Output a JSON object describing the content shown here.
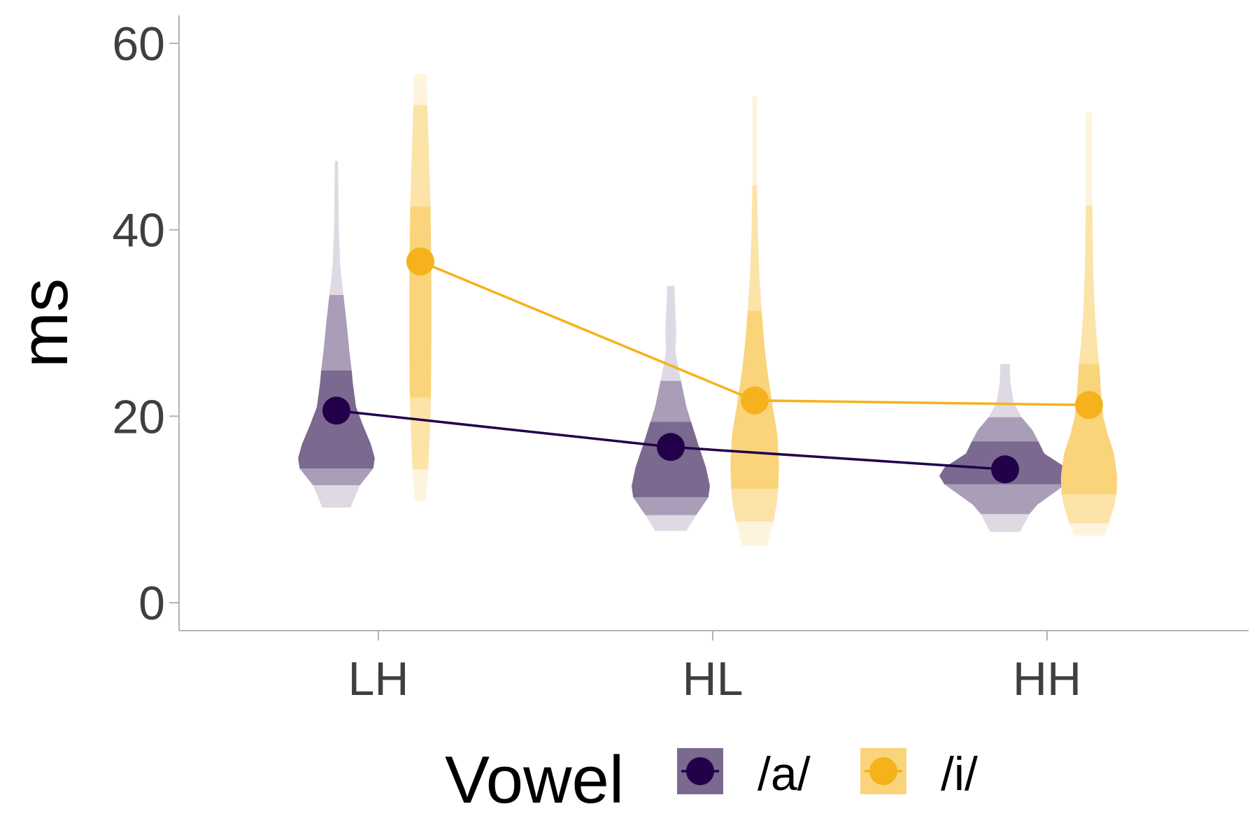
{
  "chart_data": {
    "type": "violin",
    "ylabel": "ms",
    "xlabel": "",
    "ylim": [
      -3,
      63
    ],
    "yticks": [
      0,
      20,
      40,
      60
    ],
    "categories": [
      "LH",
      "HL",
      "HH"
    ],
    "grid": false,
    "legend": {
      "title": "Vowel",
      "position": "bottom"
    },
    "series": [
      {
        "name": "/a/",
        "color": "#22004a",
        "fill": "#7b6990",
        "means": [
          20.6,
          16.7,
          14.3
        ],
        "violins": [
          {
            "min": 10.2,
            "max": 47.4,
            "bands": [
              10.2,
              12.6,
              14.4,
              24.9,
              33.0,
              47.4
            ],
            "profile": [
              [
                10.2,
                0.36
              ],
              [
                12.6,
                0.6
              ],
              [
                14.4,
                0.94
              ],
              [
                15.5,
                0.98
              ],
              [
                17.0,
                0.88
              ],
              [
                19.0,
                0.68
              ],
              [
                21.0,
                0.5
              ],
              [
                23.5,
                0.42
              ],
              [
                24.9,
                0.39
              ],
              [
                27.0,
                0.33
              ],
              [
                30.0,
                0.26
              ],
              [
                33.0,
                0.18
              ],
              [
                36.0,
                0.1
              ],
              [
                40.0,
                0.06
              ],
              [
                44.0,
                0.05
              ],
              [
                47.4,
                0.04
              ]
            ]
          },
          {
            "min": 7.7,
            "max": 34.0,
            "bands": [
              7.7,
              9.4,
              11.3,
              19.4,
              23.8,
              34.0
            ],
            "profile": [
              [
                7.7,
                0.4
              ],
              [
                9.4,
                0.65
              ],
              [
                11.3,
                0.96
              ],
              [
                12.5,
                1.0
              ],
              [
                14.5,
                0.9
              ],
              [
                17.0,
                0.7
              ],
              [
                19.4,
                0.52
              ],
              [
                21.0,
                0.4
              ],
              [
                23.0,
                0.3
              ],
              [
                23.8,
                0.26
              ],
              [
                25.5,
                0.18
              ],
              [
                27.0,
                0.12
              ],
              [
                29.0,
                0.14
              ],
              [
                31.0,
                0.12
              ],
              [
                33.0,
                0.1
              ],
              [
                34.0,
                0.09
              ]
            ]
          },
          {
            "min": 7.6,
            "max": 25.6,
            "bands": [
              7.6,
              9.5,
              12.7,
              17.3,
              19.9,
              25.6
            ],
            "profile": [
              [
                7.6,
                0.38
              ],
              [
                9.5,
                0.62
              ],
              [
                10.5,
                0.82
              ],
              [
                11.5,
                1.15
              ],
              [
                12.7,
                1.55
              ],
              [
                13.6,
                1.68
              ],
              [
                14.5,
                1.55
              ],
              [
                16.0,
                1.0
              ],
              [
                17.3,
                0.85
              ],
              [
                18.5,
                0.7
              ],
              [
                19.9,
                0.42
              ],
              [
                21.5,
                0.22
              ],
              [
                23.5,
                0.14
              ],
              [
                25.6,
                0.12
              ]
            ]
          }
        ]
      },
      {
        "name": "/i/",
        "color": "#f5b21c",
        "fill": "#fad47a",
        "means": [
          36.6,
          21.7,
          21.2
        ],
        "violins": [
          {
            "min": 10.9,
            "max": 56.7,
            "bands": [
              10.9,
              14.3,
              22.0,
              42.5,
              53.4,
              56.7
            ],
            "profile": [
              [
                10.9,
                0.14
              ],
              [
                14.3,
                0.2
              ],
              [
                18.0,
                0.24
              ],
              [
                22.0,
                0.27
              ],
              [
                28.0,
                0.28
              ],
              [
                35.0,
                0.28
              ],
              [
                42.5,
                0.26
              ],
              [
                48.0,
                0.22
              ],
              [
                53.4,
                0.18
              ],
              [
                56.7,
                0.16
              ]
            ]
          },
          {
            "min": 6.1,
            "max": 54.3,
            "bands": [
              6.1,
              8.7,
              12.2,
              31.3,
              44.8,
              54.3
            ],
            "profile": [
              [
                6.1,
                0.32
              ],
              [
                8.7,
                0.48
              ],
              [
                10.5,
                0.56
              ],
              [
                12.2,
                0.6
              ],
              [
                15.0,
                0.62
              ],
              [
                18.0,
                0.58
              ],
              [
                21.0,
                0.46
              ],
              [
                25.0,
                0.32
              ],
              [
                28.0,
                0.24
              ],
              [
                31.3,
                0.18
              ],
              [
                35.0,
                0.12
              ],
              [
                40.0,
                0.08
              ],
              [
                44.8,
                0.06
              ],
              [
                50.0,
                0.06
              ],
              [
                54.3,
                0.06
              ]
            ]
          },
          {
            "min": 7.2,
            "max": 52.6,
            "bands": [
              7.2,
              8.5,
              11.6,
              25.6,
              42.6,
              52.6
            ],
            "profile": [
              [
                7.2,
                0.4
              ],
              [
                8.5,
                0.5
              ],
              [
                10.5,
                0.65
              ],
              [
                11.6,
                0.7
              ],
              [
                13.5,
                0.72
              ],
              [
                16.0,
                0.64
              ],
              [
                18.0,
                0.48
              ],
              [
                20.0,
                0.36
              ],
              [
                23.0,
                0.3
              ],
              [
                25.6,
                0.26
              ],
              [
                28.0,
                0.2
              ],
              [
                31.0,
                0.15
              ],
              [
                35.0,
                0.11
              ],
              [
                40.0,
                0.09
              ],
              [
                45.0,
                0.08
              ],
              [
                50.0,
                0.08
              ],
              [
                52.6,
                0.08
              ]
            ]
          }
        ]
      }
    ]
  }
}
